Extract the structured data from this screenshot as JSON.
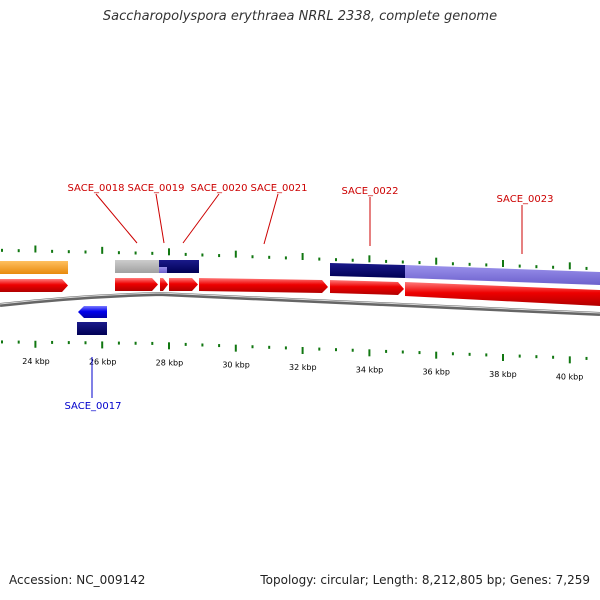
{
  "title": "Saccharopolyspora erythraea NRRL 2338, complete genome",
  "footer": {
    "accession": "Accession: NC_009142",
    "stats": "Topology: circular; Length: 8,212,805 bp; Genes: 7,259"
  },
  "scale": {
    "labels": [
      "24 kbp",
      "26 kbp",
      "28 kbp",
      "30 kbp",
      "32 kbp",
      "34 kbp",
      "36 kbp",
      "38 kbp",
      "40 kbp"
    ]
  },
  "gene_labels": [
    {
      "id": "SACE_0017",
      "text": "SACE_0017",
      "strand": "reverse"
    },
    {
      "id": "SACE_0018",
      "text": "SACE_0018",
      "strand": "forward"
    },
    {
      "id": "SACE_0019",
      "text": "SACE_0019",
      "strand": "forward"
    },
    {
      "id": "SACE_0020",
      "text": "SACE_0020",
      "strand": "forward"
    },
    {
      "id": "SACE_0021",
      "text": "SACE_0021",
      "strand": "forward"
    },
    {
      "id": "SACE_0022",
      "text": "SACE_0022",
      "strand": "forward"
    },
    {
      "id": "SACE_0023",
      "text": "SACE_0023",
      "strand": "forward"
    }
  ],
  "colors": {
    "forward_gene": "#ee0000",
    "reverse_gene": "#0000ee",
    "forward_label": "#cc0000",
    "reverse_label": "#0000cc",
    "navy_feature": "#000066",
    "lavender_feature": "#7b6fd6",
    "gray_feature": "#b4b4b4",
    "orange_feature": "#f39a1c",
    "tick": "#117711",
    "backbone": "#777777"
  }
}
